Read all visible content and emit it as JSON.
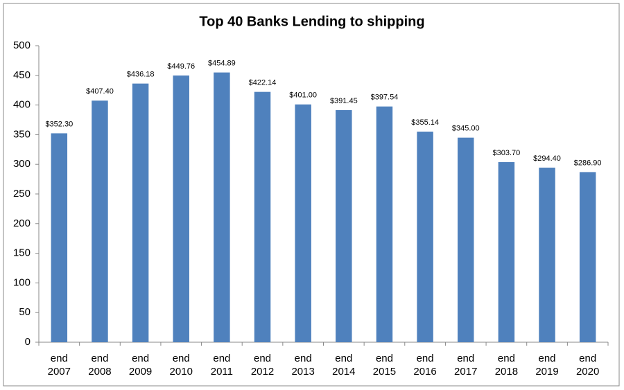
{
  "chart_data": {
    "type": "bar",
    "title": "Top 40 Banks Lending to shipping",
    "categories": [
      "end 2007",
      "end 2008",
      "end 2009",
      "end 2010",
      "end 2011",
      "end 2012",
      "end 2013",
      "end 2014",
      "end 2015",
      "end 2016",
      "end 2017",
      "end 2018",
      "end 2019",
      "end 2020"
    ],
    "values": [
      352.3,
      407.4,
      436.18,
      449.76,
      454.89,
      422.14,
      401.0,
      391.45,
      397.54,
      355.14,
      345.0,
      303.7,
      294.4,
      286.9
    ],
    "value_labels": [
      "$352.30",
      "$407.40",
      "$436.18",
      "$449.76",
      "$454.89",
      "$422.14",
      "$401.00",
      "$391.45",
      "$397.54",
      "$355.14",
      "$345.00",
      "$303.70",
      "$294.40",
      "$286.90"
    ],
    "color": "#4f81bd",
    "ylim": [
      0,
      500
    ],
    "yticks": [
      0,
      50,
      100,
      150,
      200,
      250,
      300,
      350,
      400,
      450,
      500
    ],
    "grid": false
  }
}
